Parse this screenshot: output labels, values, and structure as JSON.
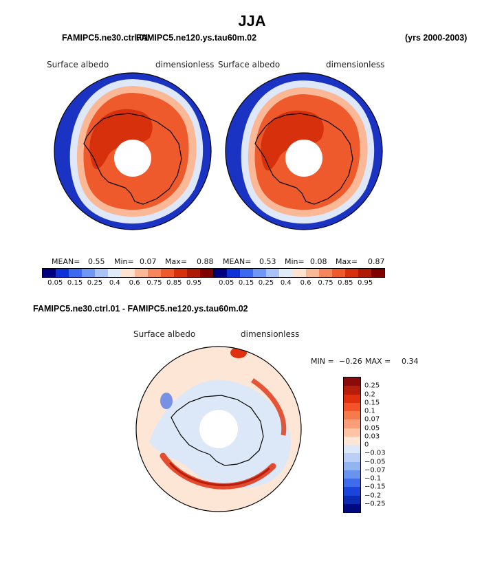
{
  "figure": {
    "season": "JJA",
    "left_header": "FAMIPC5.ne30.ctrl.01",
    "overlap_header": "FAMIPC5.ne120.ys.tau60m.02",
    "period": "(yrs 2000-2003)",
    "diff_header": "FAMIPC5.ne30.ctrl.01 - FAMIPC5.ne120.ys.tau60m.02"
  },
  "colors": {
    "ocean": "#1a33c2",
    "ice_edge": "#e8eef8",
    "land_outline": "#000000",
    "high": "#e04a1e",
    "max": "#8c0a0a"
  },
  "chart_data": [
    {
      "type": "heatmap",
      "title": "Surface albedo",
      "units": "dimensionless",
      "projection": "south polar stereographic",
      "stats": {
        "mean_label": "MEAN=",
        "mean": "0.55",
        "min_label": "Min=",
        "min": "0.07",
        "max_label": "Max=",
        "max": "0.88"
      },
      "colorbar": {
        "levels": [
          "0.05",
          "0.15",
          "0.25",
          "0.4",
          "0.6",
          "0.75",
          "0.85",
          "0.95"
        ],
        "colors": [
          "#00007f",
          "#0f31d8",
          "#3d69f0",
          "#6f97f3",
          "#a9c3f6",
          "#e1ebf8",
          "#fde3d0",
          "#fbb896",
          "#f7875a",
          "#ef5a2c",
          "#d7300d",
          "#ae1a06",
          "#800000"
        ]
      }
    },
    {
      "type": "heatmap",
      "title": "Surface albedo",
      "units": "dimensionless",
      "projection": "south polar stereographic",
      "stats": {
        "mean_label": "MEAN=",
        "mean": "0.53",
        "min_label": "Min=",
        "min": "0.08",
        "max_label": "Max=",
        "max": "0.87"
      },
      "colorbar": {
        "levels": [
          "0.05",
          "0.15",
          "0.25",
          "0.4",
          "0.6",
          "0.75",
          "0.85",
          "0.95"
        ],
        "colors": [
          "#00007f",
          "#0f31d8",
          "#3d69f0",
          "#6f97f3",
          "#a9c3f6",
          "#e1ebf8",
          "#fde3d0",
          "#fbb896",
          "#f7875a",
          "#ef5a2c",
          "#d7300d",
          "#ae1a06",
          "#800000"
        ]
      }
    },
    {
      "type": "heatmap",
      "title": "Surface albedo",
      "units": "dimensionless",
      "projection": "south polar stereographic",
      "stats": {
        "min_label": "MIN =",
        "min": "−0.26",
        "max_label": "MAX =",
        "max": "0.34"
      },
      "colorbar": {
        "levels": [
          "0.25",
          "0.2",
          "0.15",
          "0.1",
          "0.07",
          "0.05",
          "0.03",
          "0",
          "−0.03",
          "−0.05",
          "−0.07",
          "−0.1",
          "−0.15",
          "−0.2",
          "−0.25"
        ],
        "colors": [
          "#8b0a0a",
          "#b61d0b",
          "#e0300f",
          "#f4532a",
          "#f77a4d",
          "#fa9e77",
          "#fdc3a4",
          "#fde6d6",
          "#dce8f7",
          "#b9cff5",
          "#93b3f1",
          "#6a93ee",
          "#3e6ceb",
          "#1a44da",
          "#0c2bb2",
          "#000a80"
        ]
      }
    }
  ]
}
